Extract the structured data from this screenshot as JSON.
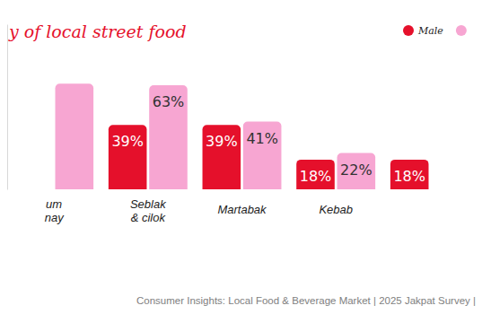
{
  "chart_data": {
    "type": "bar",
    "title": "y of local street food",
    "categories": [
      "um\nnay",
      "Seblak\n& cilok",
      "Martabak",
      "Kebab",
      null
    ],
    "series": [
      {
        "name": "Male",
        "color": "#e5102b",
        "values": [
          null,
          39,
          39,
          18,
          18
        ],
        "value_labels": [
          null,
          "39%",
          "39%",
          "18%",
          "18%"
        ]
      },
      {
        "name": null,
        "color": "#f7a6d2",
        "values": [
          64,
          63,
          41,
          22,
          null
        ],
        "value_labels": [
          null,
          "63%",
          "41%",
          "22%",
          null
        ]
      }
    ],
    "ylim": [
      0,
      100
    ],
    "tick_labels": false,
    "data_labels": true,
    "legend": "top-right",
    "annotations": [
      "Consumer Insights: Local Food & Beverage Market | 2025 Jakpat Survey |"
    ]
  }
}
